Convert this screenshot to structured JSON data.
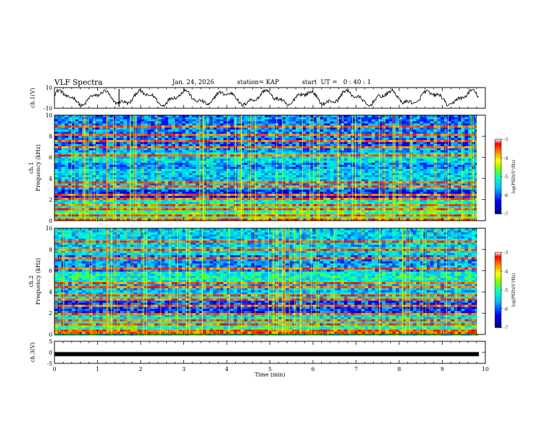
{
  "header": {
    "title": "VLF Spectra",
    "date": "Jan. 24, 2026",
    "station": "station= KAP",
    "start": "start  UT =   0 : 40 : 1"
  },
  "chart_data": [
    {
      "type": "line",
      "name": "ch1-waveform",
      "ylabel": "ch.1(V)",
      "ylim": [
        -10,
        10
      ],
      "yticks": [
        "10",
        "-10"
      ],
      "x_unit": "min",
      "xlim": [
        0,
        10
      ],
      "data_end_min": 9.85,
      "description_level": "oscillating trace between about -8 and 8 V"
    },
    {
      "type": "heatmap",
      "name": "ch1-spectrogram",
      "ylabel_line1": "ch.1",
      "ylabel_line2": "Frequency (kHz)",
      "ylim": [
        0,
        10
      ],
      "yticks": [
        "0",
        "2",
        "4",
        "6",
        "8",
        "10"
      ],
      "xlim": [
        0,
        10
      ],
      "colorbar": {
        "label": "log(PSD)(V²/Hz)",
        "range": [
          -7,
          -3
        ],
        "ticks": [
          "-3",
          "-4",
          "-5",
          "-6",
          "-7"
        ]
      }
    },
    {
      "type": "heatmap",
      "name": "ch2-spectrogram",
      "ylabel_line1": "ch.2",
      "ylabel_line2": "Frequency (kHz)",
      "ylim": [
        0,
        10
      ],
      "yticks": [
        "0",
        "2",
        "4",
        "6",
        "8",
        "10"
      ],
      "xlim": [
        0,
        10
      ],
      "colorbar": {
        "label": "log(PSD)(V²/Hz)",
        "range": [
          -7,
          -3
        ],
        "ticks": [
          "-3",
          "-4",
          "-5",
          "-6",
          "-7"
        ]
      }
    },
    {
      "type": "line",
      "name": "ch3-waveform",
      "ylabel": "ch.3(V)",
      "ylim": [
        -5,
        5
      ],
      "yticks": [
        "5",
        "0",
        "-5"
      ],
      "level_v": -0.8,
      "xlim": [
        0,
        10
      ]
    }
  ],
  "xaxis": {
    "label": "Time  (min)",
    "ticks": [
      "0",
      "1",
      "2",
      "3",
      "4",
      "5",
      "6",
      "7",
      "8",
      "9",
      "10"
    ]
  },
  "colors": {
    "trace": "#000000",
    "colormap": [
      "#00007f",
      "#0000ff",
      "#00bfff",
      "#00ffbf",
      "#7fff00",
      "#ffff00",
      "#ff7f00",
      "#ff0000",
      "#ffffff"
    ]
  }
}
